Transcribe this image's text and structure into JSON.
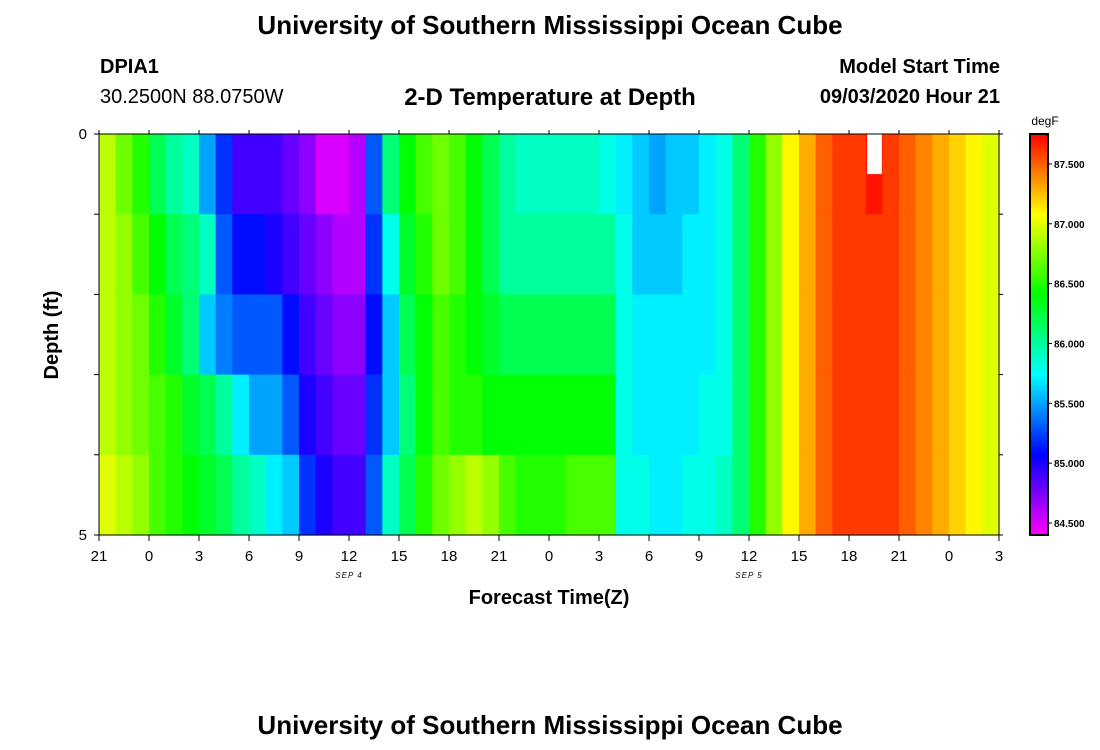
{
  "page": {
    "title": "University of Southern Mississippi Ocean Cube",
    "station_id": "DPIA1",
    "coords": "30.2500N 88.0750W",
    "plot_title": "2-D Temperature at Depth",
    "model_label": "Model Start Time",
    "model_time": "09/03/2020 Hour 21",
    "footer_title": "University of Southern Mississippi Ocean Cube"
  },
  "chart_data": {
    "type": "heatmap",
    "xlabel": "Forecast Time(Z)",
    "ylabel": "Depth (ft)",
    "x_tick_labels": [
      "21",
      "0",
      "3",
      "6",
      "9",
      "12",
      "15",
      "18",
      "21",
      "0",
      "3",
      "6",
      "9",
      "12",
      "15",
      "18",
      "21",
      "0",
      "3"
    ],
    "x_range_hours": [
      0,
      54
    ],
    "date_labels": [
      {
        "text": "SEP 4",
        "hour": 15
      },
      {
        "text": "SEP 5",
        "hour": 39
      }
    ],
    "y_tick_labels": [
      "0",
      "5"
    ],
    "y_range_ft": [
      0,
      5
    ],
    "colorbar": {
      "unit": "degF",
      "min": 84.4,
      "max": 87.75,
      "tick_labels": [
        "87.500",
        "87.000",
        "86.500",
        "86.000",
        "85.500",
        "85.000",
        "84.500"
      ],
      "tick_values": [
        87.5,
        87.0,
        86.5,
        86.0,
        85.5,
        85.0,
        84.5
      ]
    },
    "depth_levels": [
      0,
      1,
      2,
      3,
      4,
      5
    ],
    "columns": [
      {
        "h": 0,
        "v": [
          86.9,
          86.9,
          86.9,
          86.9,
          87.0
        ]
      },
      {
        "h": 1,
        "v": [
          86.7,
          86.8,
          86.8,
          86.8,
          86.9
        ]
      },
      {
        "h": 2,
        "v": [
          86.5,
          86.6,
          86.7,
          86.7,
          86.8
        ]
      },
      {
        "h": 3,
        "v": [
          86.2,
          86.4,
          86.5,
          86.6,
          86.6
        ]
      },
      {
        "h": 4,
        "v": [
          86.0,
          86.2,
          86.3,
          86.5,
          86.5
        ]
      },
      {
        "h": 5,
        "v": [
          85.9,
          86.1,
          86.1,
          86.3,
          86.4
        ]
      },
      {
        "h": 6,
        "v": [
          85.5,
          85.9,
          85.6,
          86.2,
          86.3
        ]
      },
      {
        "h": 7,
        "v": [
          85.2,
          85.3,
          85.4,
          86.0,
          86.2
        ]
      },
      {
        "h": 8,
        "v": [
          84.9,
          85.1,
          85.3,
          85.7,
          86.0
        ]
      },
      {
        "h": 9,
        "v": [
          84.9,
          85.1,
          85.3,
          85.5,
          85.9
        ]
      },
      {
        "h": 10,
        "v": [
          84.9,
          85.0,
          85.3,
          85.5,
          85.7
        ]
      },
      {
        "h": 11,
        "v": [
          84.8,
          84.9,
          85.1,
          85.3,
          85.6
        ]
      },
      {
        "h": 12,
        "v": [
          84.7,
          84.8,
          84.9,
          85.0,
          85.2
        ]
      },
      {
        "h": 13,
        "v": [
          84.5,
          84.7,
          84.8,
          84.9,
          85.0
        ]
      },
      {
        "h": 14,
        "v": [
          84.5,
          84.6,
          84.7,
          84.8,
          84.9
        ]
      },
      {
        "h": 15,
        "v": [
          84.6,
          84.6,
          84.7,
          84.8,
          84.9
        ]
      },
      {
        "h": 16,
        "v": [
          85.3,
          85.2,
          85.1,
          85.2,
          85.3
        ]
      },
      {
        "h": 17,
        "v": [
          86.1,
          85.8,
          85.6,
          85.6,
          85.9
        ]
      },
      {
        "h": 18,
        "v": [
          86.4,
          86.3,
          86.2,
          86.1,
          86.2
        ]
      },
      {
        "h": 19,
        "v": [
          86.6,
          86.5,
          86.4,
          86.4,
          86.5
        ]
      },
      {
        "h": 20,
        "v": [
          86.7,
          86.7,
          86.6,
          86.6,
          86.7
        ]
      },
      {
        "h": 21,
        "v": [
          86.6,
          86.6,
          86.5,
          86.5,
          86.8
        ]
      },
      {
        "h": 22,
        "v": [
          86.4,
          86.4,
          86.4,
          86.5,
          86.9
        ]
      },
      {
        "h": 23,
        "v": [
          86.2,
          86.2,
          86.3,
          86.4,
          86.8
        ]
      },
      {
        "h": 24,
        "v": [
          86.0,
          86.0,
          86.2,
          86.4,
          86.6
        ]
      },
      {
        "h": 25,
        "v": [
          85.9,
          86.0,
          86.2,
          86.4,
          86.5
        ]
      },
      {
        "h": 26,
        "v": [
          85.9,
          86.0,
          86.2,
          86.4,
          86.5
        ]
      },
      {
        "h": 27,
        "v": [
          85.9,
          86.0,
          86.2,
          86.4,
          86.5
        ]
      },
      {
        "h": 28,
        "v": [
          85.9,
          86.0,
          86.2,
          86.4,
          86.6
        ]
      },
      {
        "h": 29,
        "v": [
          85.9,
          86.0,
          86.2,
          86.4,
          86.6
        ]
      },
      {
        "h": 30,
        "v": [
          85.8,
          86.0,
          86.2,
          86.4,
          86.6
        ]
      },
      {
        "h": 31,
        "v": [
          85.7,
          85.8,
          85.8,
          85.8,
          85.8
        ]
      },
      {
        "h": 32,
        "v": [
          85.6,
          85.6,
          85.7,
          85.7,
          85.8
        ]
      },
      {
        "h": 33,
        "v": [
          85.5,
          85.6,
          85.7,
          85.7,
          85.7
        ]
      },
      {
        "h": 34,
        "v": [
          85.6,
          85.6,
          85.7,
          85.7,
          85.7
        ]
      },
      {
        "h": 35,
        "v": [
          85.6,
          85.7,
          85.7,
          85.7,
          85.8
        ]
      },
      {
        "h": 36,
        "v": [
          85.7,
          85.7,
          85.7,
          85.8,
          85.8
        ]
      },
      {
        "h": 37,
        "v": [
          85.8,
          85.8,
          85.8,
          85.8,
          85.9
        ]
      },
      {
        "h": 38,
        "v": [
          86.1,
          86.1,
          86.1,
          86.1,
          86.1
        ]
      },
      {
        "h": 39,
        "v": [
          86.5,
          86.5,
          86.5,
          86.5,
          86.5
        ]
      },
      {
        "h": 40,
        "v": [
          86.8,
          86.8,
          86.8,
          86.8,
          86.8
        ]
      },
      {
        "h": 41,
        "v": [
          87.1,
          87.1,
          87.1,
          87.1,
          87.1
        ]
      },
      {
        "h": 42,
        "v": [
          87.3,
          87.3,
          87.3,
          87.3,
          87.3
        ]
      },
      {
        "h": 43,
        "v": [
          87.5,
          87.5,
          87.5,
          87.5,
          87.5
        ]
      },
      {
        "h": 44,
        "v": [
          87.6,
          87.6,
          87.6,
          87.6,
          87.6
        ]
      },
      {
        "h": 45,
        "v": [
          87.6,
          87.6,
          87.6,
          87.6,
          87.6
        ]
      },
      {
        "h": 46,
        "v": [
          87.7,
          87.6,
          87.6,
          87.6,
          87.6
        ]
      },
      {
        "h": 47,
        "v": [
          87.6,
          87.6,
          87.6,
          87.6,
          87.6
        ]
      },
      {
        "h": 48,
        "v": [
          87.5,
          87.5,
          87.5,
          87.5,
          87.5
        ]
      },
      {
        "h": 49,
        "v": [
          87.4,
          87.4,
          87.4,
          87.4,
          87.4
        ]
      },
      {
        "h": 50,
        "v": [
          87.3,
          87.3,
          87.3,
          87.3,
          87.3
        ]
      },
      {
        "h": 51,
        "v": [
          87.2,
          87.2,
          87.2,
          87.2,
          87.2
        ]
      },
      {
        "h": 52,
        "v": [
          87.1,
          87.1,
          87.1,
          87.1,
          87.1
        ]
      },
      {
        "h": 53,
        "v": [
          87.0,
          87.0,
          87.0,
          87.0,
          87.0
        ]
      }
    ],
    "marker": {
      "hour": 46,
      "depth_from": 0,
      "depth_to": 0.5,
      "color": "#ffffff"
    }
  }
}
